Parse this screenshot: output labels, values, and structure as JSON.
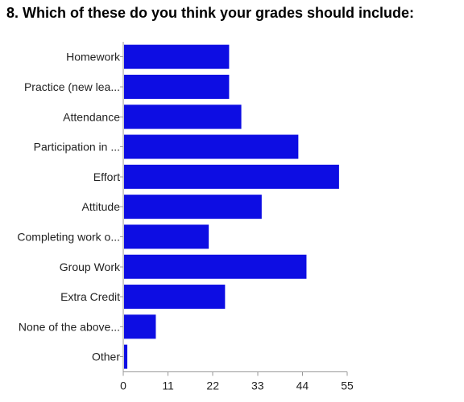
{
  "title": "8. Which of these do you think your grades should include:",
  "chart_data": {
    "type": "bar",
    "orientation": "horizontal",
    "title": "8. Which of these do you think your grades should include:",
    "xlabel": "",
    "ylabel": "",
    "categories": [
      "Homework",
      "Practice (new lea...",
      "Attendance",
      "Participation in ...",
      "Effort",
      "Attitude",
      "Completing work o...",
      "Group Work",
      "Extra Credit",
      "None of the above...",
      "Other"
    ],
    "values": [
      26,
      26,
      29,
      43,
      53,
      34,
      21,
      45,
      25,
      8,
      1
    ],
    "xlim": [
      0,
      55
    ],
    "xticks": [
      0,
      11,
      22,
      33,
      44,
      55
    ],
    "bar_color": "#0d0de3",
    "grid": false,
    "legend": "none"
  }
}
